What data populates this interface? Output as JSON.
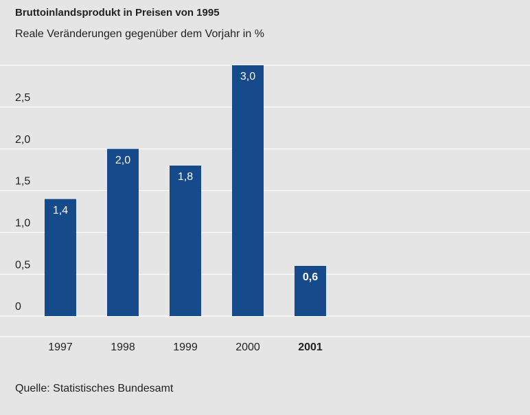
{
  "chart_data": {
    "type": "bar",
    "title": "Bruttoinlandsprodukt in Preisen von 1995",
    "subtitle": "Reale Veränderungen gegenüber dem Vorjahr in %",
    "source": "Quelle: Statistisches Bundesamt",
    "categories": [
      "1997",
      "1998",
      "1999",
      "2000",
      "2001"
    ],
    "values": [
      1.4,
      2.0,
      1.8,
      3.0,
      0.6
    ],
    "value_labels": [
      "1,4",
      "2,0",
      "1,8",
      "3,0",
      "0,6"
    ],
    "highlight": 4,
    "color": "#174a8b",
    "ylim": [
      0,
      3
    ],
    "yticks": [
      0,
      {
        "value": 0.5,
        "label": "0,5"
      },
      {
        "value": 1.0,
        "label": "1,0"
      },
      {
        "value": 1.5,
        "label": "1,5"
      },
      {
        "value": 2.0,
        "label": "2,0"
      },
      {
        "value": 2.5,
        "label": "2,5"
      }
    ],
    "grid": true
  }
}
